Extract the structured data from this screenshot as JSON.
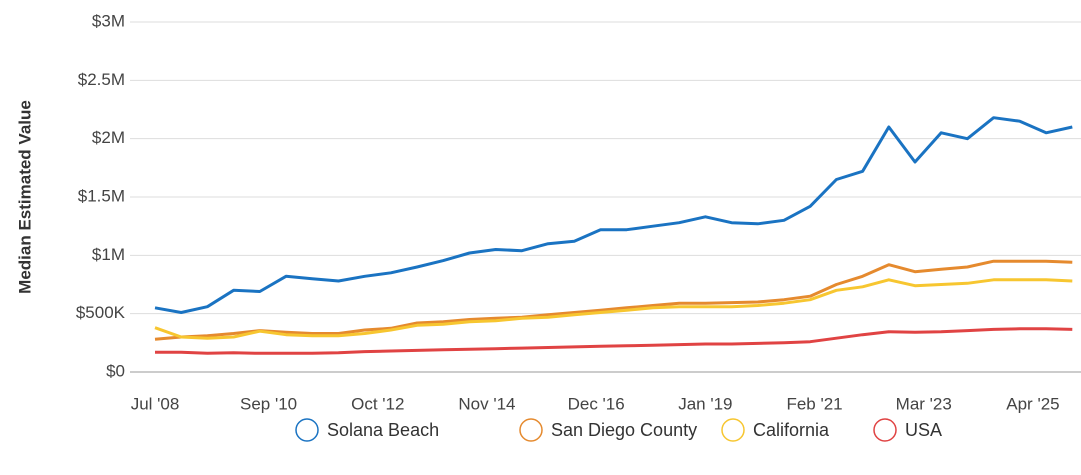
{
  "chart_data": {
    "type": "line",
    "y_label": "Median Estimated Value",
    "x": [
      "2008-07",
      "2009-01",
      "2009-07",
      "2010-01",
      "2010-07",
      "2011-01",
      "2011-07",
      "2012-01",
      "2012-07",
      "2013-01",
      "2013-07",
      "2014-01",
      "2014-07",
      "2015-01",
      "2015-07",
      "2016-01",
      "2016-07",
      "2017-01",
      "2017-07",
      "2018-01",
      "2018-07",
      "2019-01",
      "2019-07",
      "2020-01",
      "2020-07",
      "2021-01",
      "2021-07",
      "2022-01",
      "2022-07",
      "2023-01",
      "2023-07",
      "2024-01",
      "2024-07",
      "2025-01",
      "2025-07",
      "2026-01"
    ],
    "xlim": [
      "2008-07",
      "2026-03"
    ],
    "xticks": [
      {
        "value": "2008-07",
        "label": "Jul '08"
      },
      {
        "value": "2010-09",
        "label": "Sep '10"
      },
      {
        "value": "2012-10",
        "label": "Oct '12"
      },
      {
        "value": "2014-11",
        "label": "Nov '14"
      },
      {
        "value": "2016-12",
        "label": "Dec '16"
      },
      {
        "value": "2019-01",
        "label": "Jan '19"
      },
      {
        "value": "2021-02",
        "label": "Feb '21"
      },
      {
        "value": "2023-03",
        "label": "Mar '23"
      },
      {
        "value": "2025-04",
        "label": "Apr '25"
      }
    ],
    "ylim": [
      0,
      3000000
    ],
    "yticks": [
      {
        "value": 0,
        "label": "$0"
      },
      {
        "value": 500000,
        "label": "$500K"
      },
      {
        "value": 1000000,
        "label": "$1M"
      },
      {
        "value": 1500000,
        "label": "$1.5M"
      },
      {
        "value": 2000000,
        "label": "$2M"
      },
      {
        "value": 2500000,
        "label": "$2.5M"
      },
      {
        "value": 3000000,
        "label": "$3M"
      }
    ],
    "grid": true,
    "legend": "bottom",
    "series": [
      {
        "name": "Solana Beach",
        "color": "#1a73c2",
        "values": [
          550000,
          510000,
          560000,
          700000,
          690000,
          820000,
          800000,
          780000,
          820000,
          850000,
          900000,
          955000,
          1020000,
          1050000,
          1040000,
          1100000,
          1120000,
          1220000,
          1220000,
          1250000,
          1280000,
          1330000,
          1280000,
          1270000,
          1300000,
          1420000,
          1650000,
          1720000,
          2100000,
          1800000,
          2050000,
          2000000,
          2180000,
          2150000,
          2050000,
          2100000
        ]
      },
      {
        "name": "San Diego County",
        "color": "#e58a2e",
        "values": [
          280000,
          300000,
          310000,
          330000,
          355000,
          340000,
          330000,
          330000,
          360000,
          375000,
          420000,
          430000,
          450000,
          460000,
          470000,
          490000,
          510000,
          530000,
          550000,
          570000,
          590000,
          590000,
          595000,
          600000,
          620000,
          650000,
          750000,
          820000,
          920000,
          860000,
          880000,
          900000,
          950000,
          950000,
          950000,
          940000
        ]
      },
      {
        "name": "California",
        "color": "#f7c630",
        "values": [
          380000,
          300000,
          290000,
          300000,
          350000,
          320000,
          310000,
          310000,
          330000,
          360000,
          400000,
          410000,
          430000,
          440000,
          460000,
          470000,
          490000,
          510000,
          530000,
          550000,
          560000,
          560000,
          560000,
          570000,
          590000,
          620000,
          700000,
          730000,
          790000,
          740000,
          750000,
          760000,
          790000,
          790000,
          790000,
          780000
        ]
      },
      {
        "name": "USA",
        "color": "#e04343",
        "values": [
          170000,
          170000,
          160000,
          165000,
          160000,
          160000,
          160000,
          165000,
          175000,
          180000,
          185000,
          190000,
          195000,
          200000,
          205000,
          210000,
          215000,
          220000,
          225000,
          230000,
          235000,
          240000,
          240000,
          245000,
          250000,
          260000,
          290000,
          320000,
          345000,
          340000,
          345000,
          355000,
          365000,
          370000,
          370000,
          365000
        ]
      }
    ]
  }
}
